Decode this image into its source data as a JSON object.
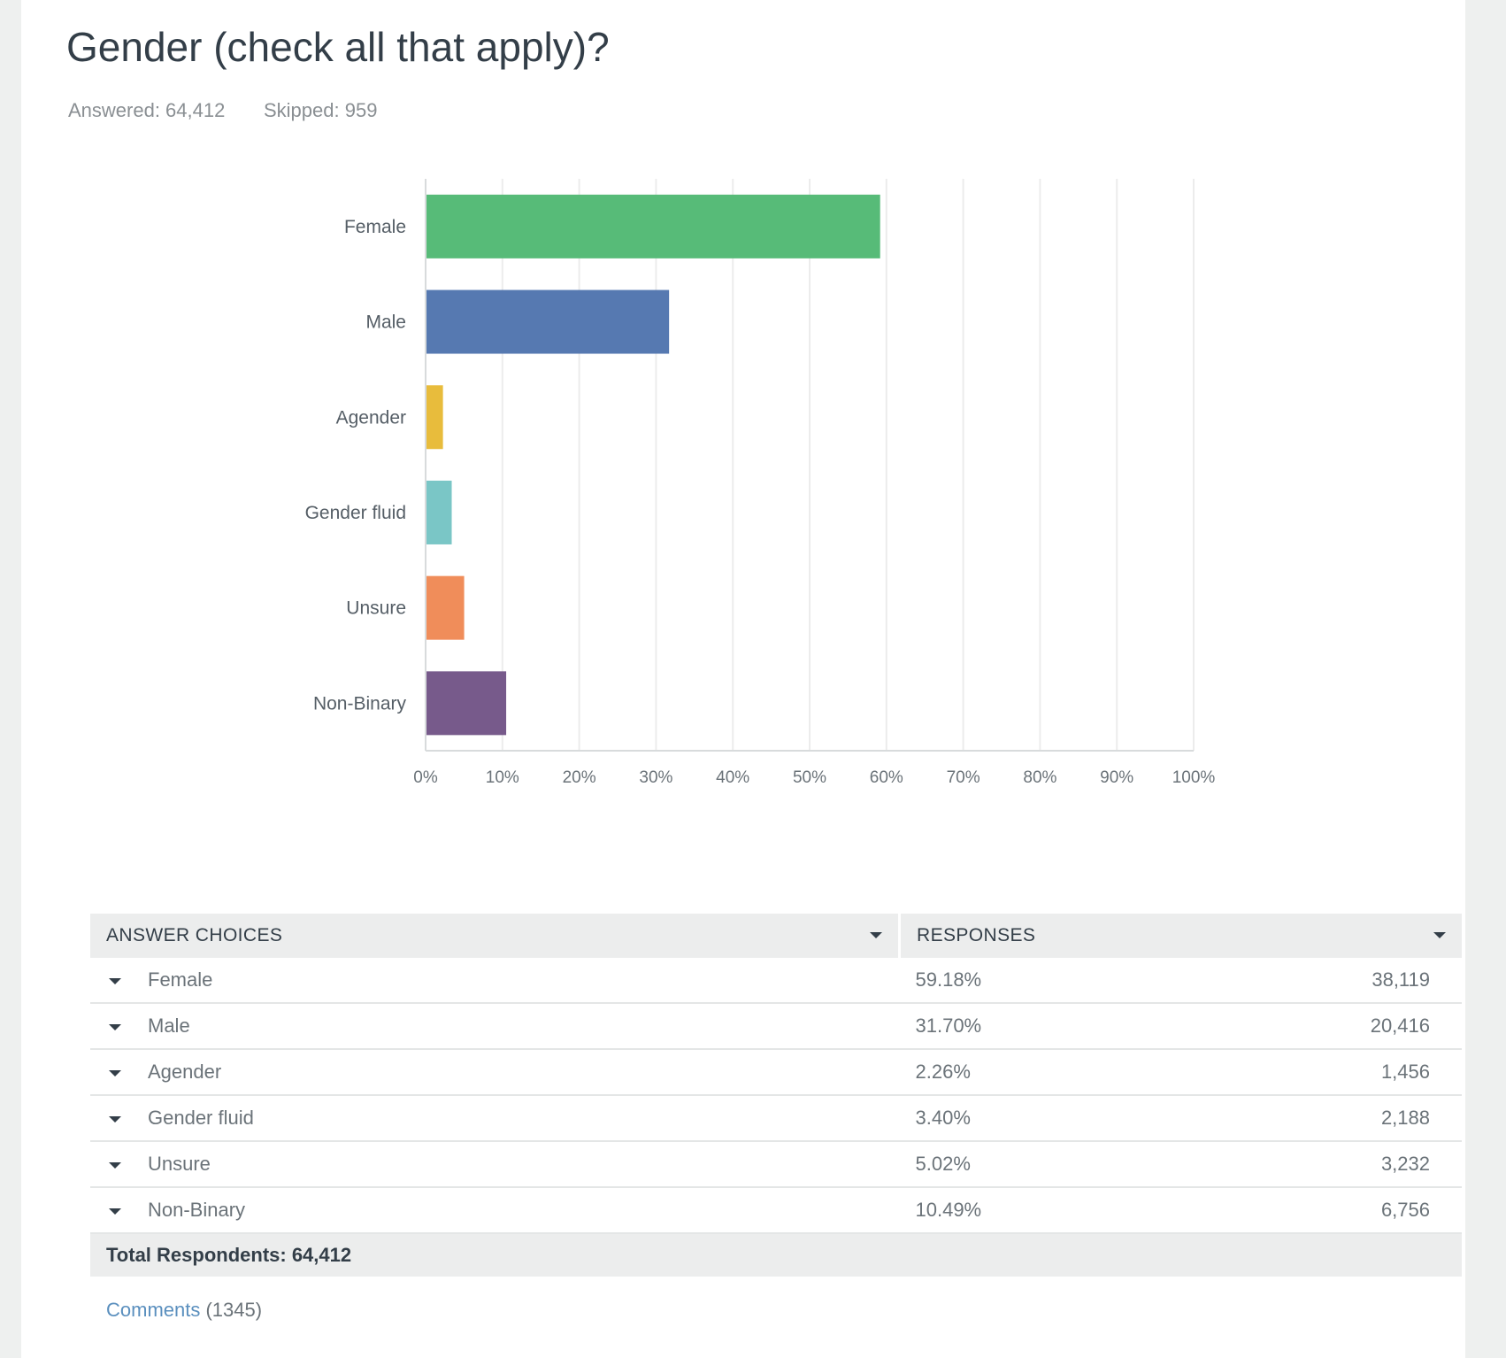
{
  "question": {
    "title": "Gender (check all that apply)?",
    "answered": "Answered: 64,412",
    "skipped": "Skipped: 959"
  },
  "chart_data": {
    "type": "bar",
    "orientation": "horizontal",
    "categories": [
      "Female",
      "Male",
      "Agender",
      "Gender fluid",
      "Unsure",
      "Non-Binary"
    ],
    "values": [
      59.18,
      31.7,
      2.26,
      3.4,
      5.02,
      10.49
    ],
    "colors": [
      "#57bb78",
      "#5679b1",
      "#e8bc3c",
      "#7ac6c6",
      "#f08d5a",
      "#775a8b"
    ],
    "xlim": [
      0,
      100
    ],
    "x_ticks": [
      "0%",
      "10%",
      "20%",
      "30%",
      "40%",
      "50%",
      "60%",
      "70%",
      "80%",
      "90%",
      "100%"
    ],
    "grid": true,
    "title": "",
    "xlabel": "",
    "ylabel": ""
  },
  "table": {
    "headers": {
      "choices": "ANSWER CHOICES",
      "responses": "RESPONSES"
    },
    "rows": [
      {
        "label": "Female",
        "percent": "59.18%",
        "count": "38,119"
      },
      {
        "label": "Male",
        "percent": "31.70%",
        "count": "20,416"
      },
      {
        "label": "Agender",
        "percent": "2.26%",
        "count": "1,456"
      },
      {
        "label": "Gender fluid",
        "percent": "3.40%",
        "count": "2,188"
      },
      {
        "label": "Unsure",
        "percent": "5.02%",
        "count": "3,232"
      },
      {
        "label": "Non-Binary",
        "percent": "10.49%",
        "count": "6,756"
      }
    ],
    "total": "Total Respondents: 64,412"
  },
  "comments": {
    "link": "Comments",
    "count": "(1345)"
  }
}
